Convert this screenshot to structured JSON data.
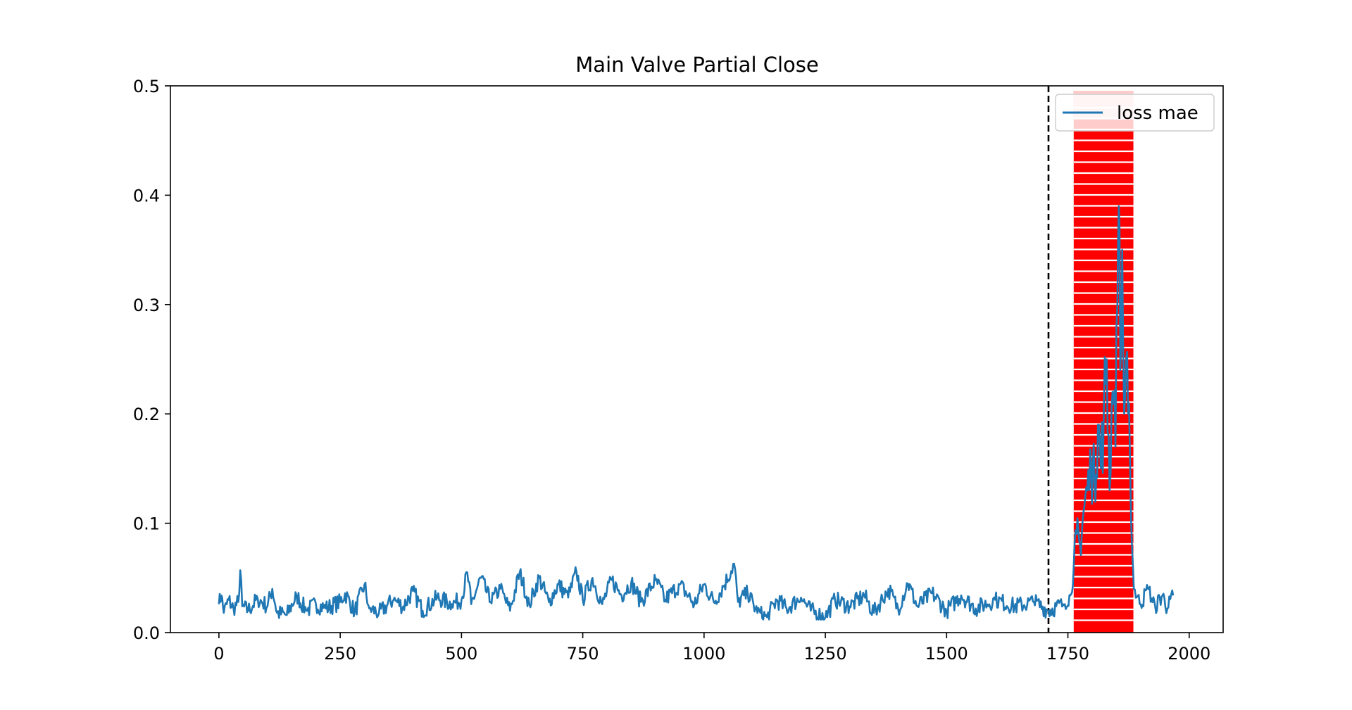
{
  "chart_data": {
    "type": "line",
    "title": "Main Valve Partial Close",
    "xlabel": "",
    "ylabel": "",
    "xlim": [
      -100,
      2070
    ],
    "ylim": [
      0,
      0.5
    ],
    "xticks": [
      0,
      250,
      500,
      750,
      1000,
      1250,
      1500,
      1750,
      2000
    ],
    "xtick_labels": [
      "0",
      "250",
      "500",
      "750",
      "1000",
      "1250",
      "1500",
      "1750",
      "2000"
    ],
    "yticks": [
      0.0,
      0.1,
      0.2,
      0.3,
      0.4,
      0.5
    ],
    "ytick_labels": [
      "0.0",
      "0.1",
      "0.2",
      "0.3",
      "0.4",
      "0.5"
    ],
    "grid": false,
    "legend": {
      "position": "top-right",
      "entries": [
        "loss mae"
      ]
    },
    "series": [
      {
        "name": "loss mae",
        "color": "#1f77b4",
        "x_start": 0,
        "x_end": 1967,
        "baseline_mean": 0.026,
        "baseline_range": [
          0.012,
          0.063
        ],
        "points": [
          [
            0,
            0.026
          ],
          [
            5,
            0.034
          ],
          [
            10,
            0.018
          ],
          [
            20,
            0.03
          ],
          [
            30,
            0.022
          ],
          [
            40,
            0.028
          ],
          [
            44,
            0.057
          ],
          [
            48,
            0.024
          ],
          [
            60,
            0.02
          ],
          [
            80,
            0.031
          ],
          [
            100,
            0.024
          ],
          [
            110,
            0.04
          ],
          [
            120,
            0.018
          ],
          [
            140,
            0.016
          ],
          [
            160,
            0.034
          ],
          [
            180,
            0.02
          ],
          [
            200,
            0.026
          ],
          [
            220,
            0.022
          ],
          [
            250,
            0.028
          ],
          [
            260,
            0.036
          ],
          [
            280,
            0.019
          ],
          [
            300,
            0.044
          ],
          [
            310,
            0.022
          ],
          [
            330,
            0.018
          ],
          [
            360,
            0.03
          ],
          [
            380,
            0.024
          ],
          [
            400,
            0.038
          ],
          [
            420,
            0.02
          ],
          [
            450,
            0.032
          ],
          [
            480,
            0.026
          ],
          [
            500,
            0.03
          ],
          [
            512,
            0.055
          ],
          [
            520,
            0.026
          ],
          [
            540,
            0.05
          ],
          [
            560,
            0.028
          ],
          [
            580,
            0.04
          ],
          [
            600,
            0.02
          ],
          [
            620,
            0.055
          ],
          [
            640,
            0.026
          ],
          [
            660,
            0.05
          ],
          [
            680,
            0.028
          ],
          [
            700,
            0.044
          ],
          [
            720,
            0.032
          ],
          [
            737,
            0.056
          ],
          [
            750,
            0.03
          ],
          [
            770,
            0.05
          ],
          [
            790,
            0.026
          ],
          [
            810,
            0.048
          ],
          [
            830,
            0.034
          ],
          [
            850,
            0.046
          ],
          [
            870,
            0.028
          ],
          [
            900,
            0.048
          ],
          [
            920,
            0.03
          ],
          [
            950,
            0.044
          ],
          [
            980,
            0.026
          ],
          [
            1000,
            0.044
          ],
          [
            1020,
            0.028
          ],
          [
            1040,
            0.042
          ],
          [
            1062,
            0.063
          ],
          [
            1070,
            0.028
          ],
          [
            1090,
            0.036
          ],
          [
            1110,
            0.018
          ],
          [
            1130,
            0.014
          ],
          [
            1150,
            0.03
          ],
          [
            1170,
            0.022
          ],
          [
            1200,
            0.032
          ],
          [
            1220,
            0.02
          ],
          [
            1250,
            0.014
          ],
          [
            1270,
            0.03
          ],
          [
            1300,
            0.024
          ],
          [
            1330,
            0.034
          ],
          [
            1350,
            0.018
          ],
          [
            1380,
            0.04
          ],
          [
            1400,
            0.022
          ],
          [
            1420,
            0.045
          ],
          [
            1440,
            0.024
          ],
          [
            1470,
            0.036
          ],
          [
            1500,
            0.02
          ],
          [
            1530,
            0.034
          ],
          [
            1560,
            0.022
          ],
          [
            1600,
            0.03
          ],
          [
            1640,
            0.024
          ],
          [
            1680,
            0.028
          ],
          [
            1710,
            0.02
          ],
          [
            1740,
            0.026
          ],
          [
            1755,
            0.034
          ],
          [
            1762,
            0.06
          ],
          [
            1768,
            0.09
          ],
          [
            1775,
            0.08
          ],
          [
            1782,
            0.11
          ],
          [
            1790,
            0.13
          ],
          [
            1798,
            0.15
          ],
          [
            1805,
            0.14
          ],
          [
            1812,
            0.19
          ],
          [
            1818,
            0.15
          ],
          [
            1824,
            0.2
          ],
          [
            1830,
            0.25
          ],
          [
            1836,
            0.13
          ],
          [
            1842,
            0.22
          ],
          [
            1848,
            0.17
          ],
          [
            1852,
            0.3
          ],
          [
            1855,
            0.39
          ],
          [
            1858,
            0.24
          ],
          [
            1862,
            0.35
          ],
          [
            1866,
            0.2
          ],
          [
            1870,
            0.25
          ],
          [
            1874,
            0.2
          ],
          [
            1878,
            0.16
          ],
          [
            1882,
            0.08
          ],
          [
            1886,
            0.04
          ],
          [
            1900,
            0.026
          ],
          [
            1915,
            0.04
          ],
          [
            1930,
            0.024
          ],
          [
            1945,
            0.034
          ],
          [
            1955,
            0.022
          ],
          [
            1967,
            0.034
          ]
        ]
      }
    ],
    "annotations": [
      {
        "type": "vline",
        "x": 1710,
        "style": "dashed",
        "color": "#000000"
      },
      {
        "type": "span",
        "x0": 1762,
        "x1": 1885,
        "color": "#ff0000",
        "pattern": "horizontal-stripes"
      }
    ]
  }
}
